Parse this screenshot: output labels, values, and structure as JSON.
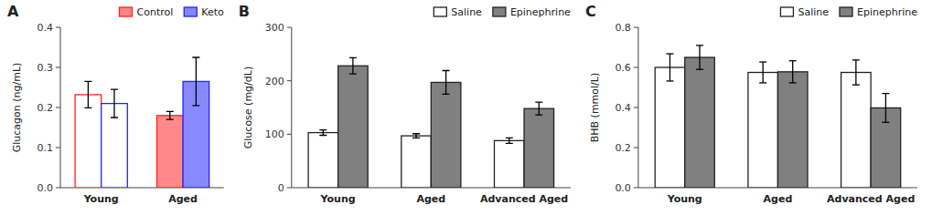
{
  "chart_data": [
    {
      "type": "bar",
      "title": "A",
      "ylabel": "Glucagon (ng/mL)",
      "categories": [
        "Young",
        "Aged"
      ],
      "series": [
        {
          "name": "Control",
          "color": "#FF2222",
          "colors": [
            "#FFFFFF",
            "#FF8888"
          ],
          "values": [
            0.232,
            0.18
          ],
          "errors": [
            0.033,
            0.01
          ]
        },
        {
          "name": "Keto",
          "color": "#2222FF",
          "colors": [
            "#FFFFFF",
            "#8888FF"
          ],
          "values": [
            0.21,
            0.265
          ],
          "errors": [
            0.035,
            0.06
          ]
        }
      ],
      "ylim": [
        0,
        0.4
      ],
      "yticks": [
        {
          "value": 0,
          "label": "0.0"
        },
        0.1,
        0.2,
        0.3,
        0.4
      ],
      "legend": "top-right"
    },
    {
      "type": "bar",
      "title": "B",
      "ylabel": "Glucose (mg/dL)",
      "categories": [
        "Young",
        "Aged",
        "Advanced Aged"
      ],
      "series": [
        {
          "name": "Saline",
          "color": "#FFFFFF",
          "values": [
            103,
            97,
            88
          ],
          "errors": [
            5,
            4,
            5
          ]
        },
        {
          "name": "Epinephrine",
          "color": "#808080",
          "values": [
            228,
            197,
            148
          ],
          "errors": [
            15,
            22,
            12
          ]
        }
      ],
      "ylim": [
        0,
        300
      ],
      "yticks": [
        0,
        100,
        200,
        300
      ],
      "legend": "top-right"
    },
    {
      "type": "bar",
      "title": "C",
      "ylabel": "BHB (mmol/L)",
      "categories": [
        "Young",
        "Aged",
        "Advanced Aged"
      ],
      "series": [
        {
          "name": "Saline",
          "color": "#FFFFFF",
          "values": [
            0.6,
            0.575,
            0.575
          ],
          "errors": [
            0.068,
            0.052,
            0.062
          ]
        },
        {
          "name": "Epinephrine",
          "color": "#808080",
          "values": [
            0.65,
            0.578,
            0.398
          ],
          "errors": [
            0.06,
            0.055,
            0.072
          ]
        }
      ],
      "ylim": [
        0,
        0.8
      ],
      "yticks": [
        {
          "value": 0,
          "label": "0.0"
        },
        0.2,
        0.4,
        0.6,
        0.8
      ],
      "legend": "top-right"
    }
  ]
}
